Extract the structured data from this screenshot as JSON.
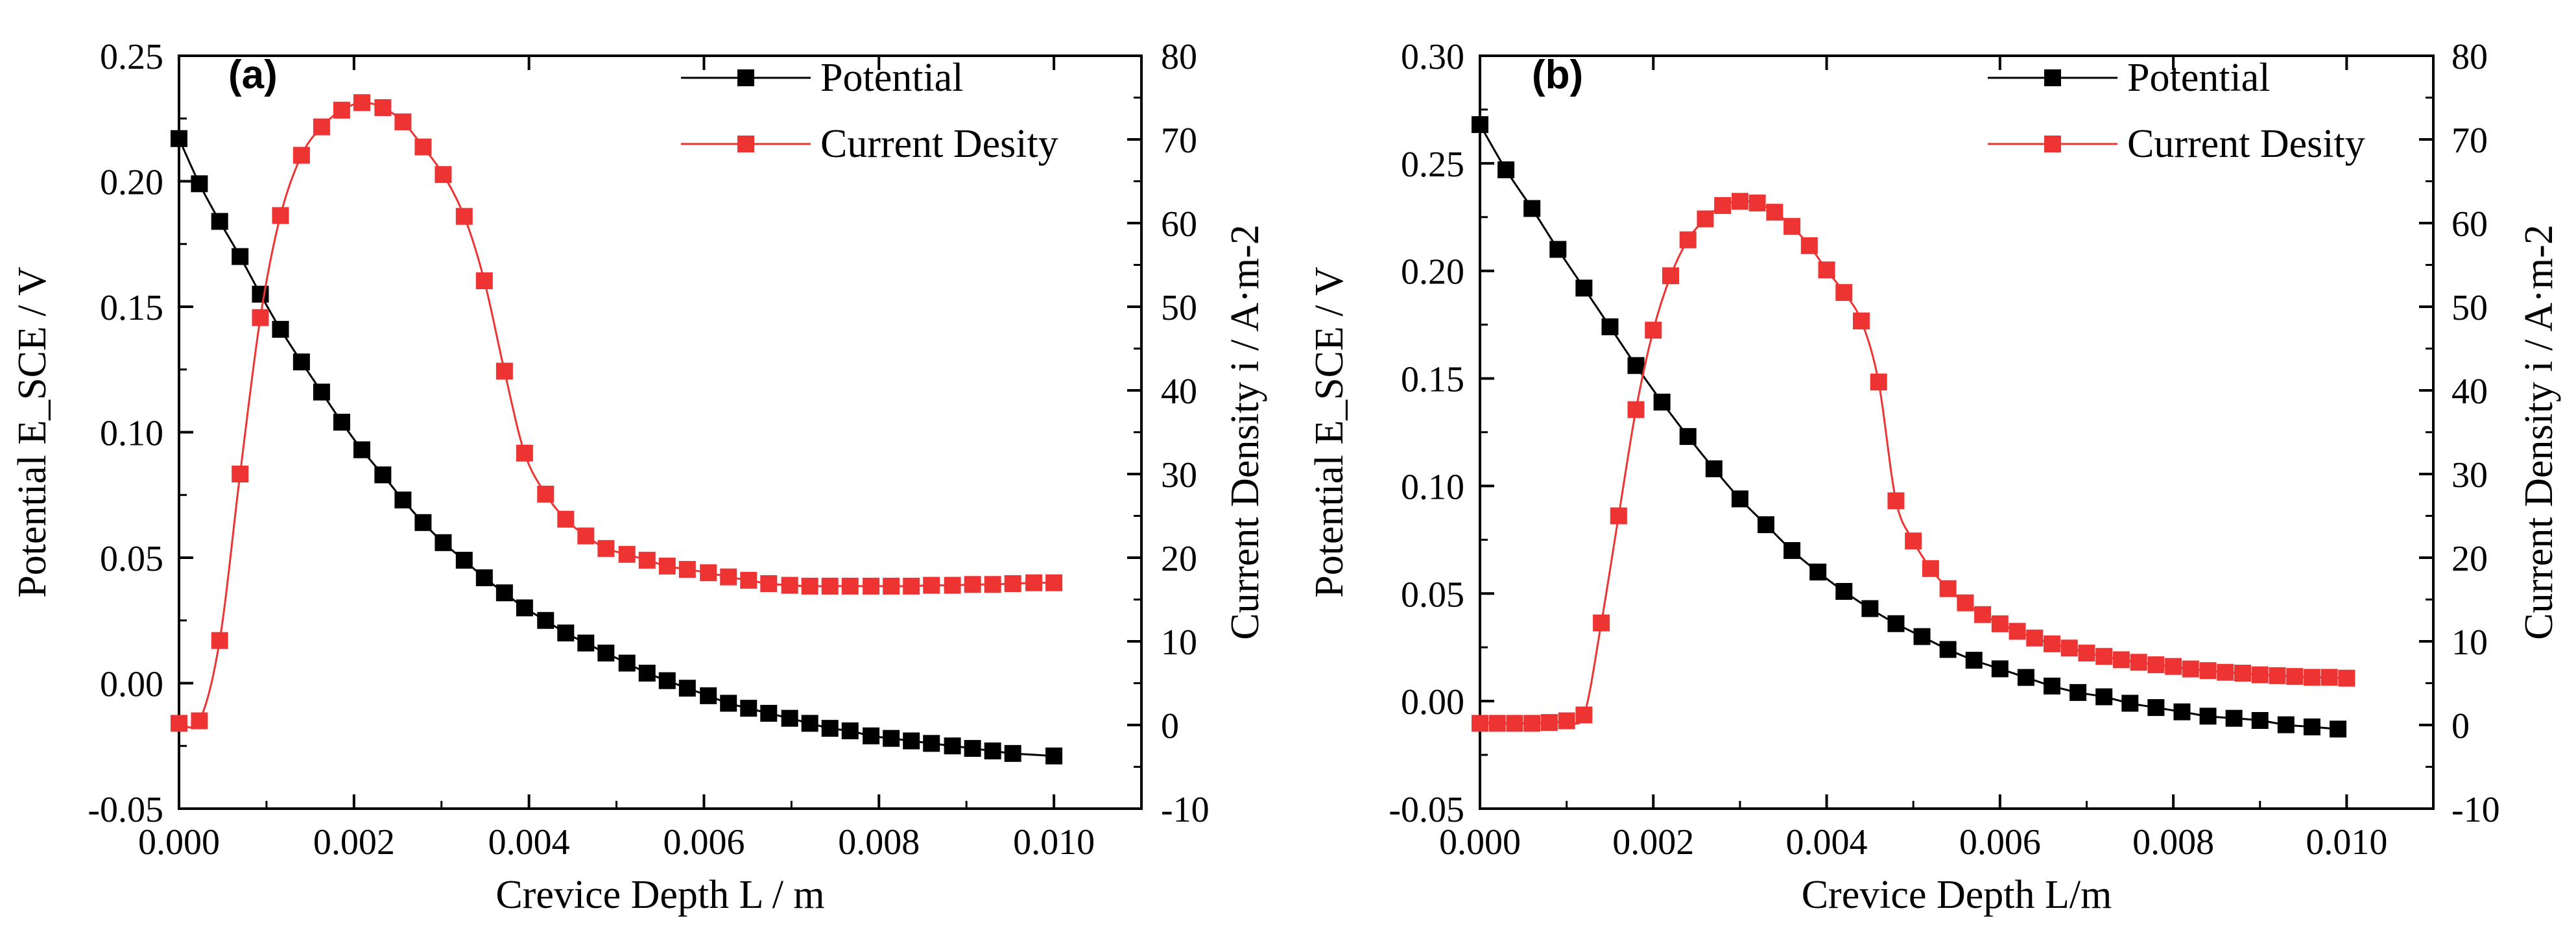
{
  "chart_data": [
    {
      "panel_label": "(a)",
      "type": "line",
      "markers": "square",
      "xlabel": "Crevice Depth L / m",
      "ylabel_left": "Potential E_SCE / V",
      "ylabel_right": "Current Density i / A·m-2",
      "xlim": [
        0,
        0.011
      ],
      "ylim_left": [
        -0.05,
        0.25
      ],
      "ylim_right": [
        -10,
        80
      ],
      "x_ticks": [
        "0.000",
        "0.002",
        "0.004",
        "0.006",
        "0.008",
        "0.010"
      ],
      "y_left_ticks": [
        "-0.05",
        "0.00",
        "0.05",
        "0.10",
        "0.15",
        "0.20",
        "0.25"
      ],
      "y_right_ticks": [
        "-10",
        "0",
        "10",
        "20",
        "30",
        "40",
        "50",
        "60",
        "70",
        "80"
      ],
      "legend_position": "top-right",
      "series": [
        {
          "name": "Potential",
          "axis": "left",
          "color": "#000000",
          "x": [
            0.0,
            0.000233,
            0.000465,
            0.000698,
            0.00093,
            0.00116,
            0.0014,
            0.00163,
            0.00186,
            0.00209,
            0.00233,
            0.00256,
            0.00279,
            0.00302,
            0.00326,
            0.00349,
            0.00372,
            0.00395,
            0.00419,
            0.00442,
            0.00465,
            0.00488,
            0.00512,
            0.00535,
            0.00558,
            0.00581,
            0.00605,
            0.00628,
            0.00651,
            0.00674,
            0.00698,
            0.00721,
            0.00744,
            0.00767,
            0.00791,
            0.00814,
            0.00837,
            0.0086,
            0.00884,
            0.00907,
            0.0093,
            0.00953,
            0.01
          ],
          "y": [
            0.217,
            0.199,
            0.184,
            0.17,
            0.155,
            0.141,
            0.128,
            0.116,
            0.104,
            0.093,
            0.083,
            0.073,
            0.064,
            0.056,
            0.049,
            0.042,
            0.036,
            0.03,
            0.025,
            0.02,
            0.016,
            0.012,
            0.008,
            0.004,
            0.001,
            -0.002,
            -0.005,
            -0.008,
            -0.01,
            -0.012,
            -0.014,
            -0.016,
            -0.018,
            -0.019,
            -0.021,
            -0.022,
            -0.023,
            -0.024,
            -0.025,
            -0.026,
            -0.027,
            -0.028,
            -0.029
          ]
        },
        {
          "name": "Current Desity",
          "axis": "right",
          "color": "#ee3333",
          "x": [
            0.0,
            0.000233,
            0.000465,
            0.000698,
            0.00093,
            0.00116,
            0.0014,
            0.00163,
            0.00186,
            0.00209,
            0.00233,
            0.00256,
            0.00279,
            0.00302,
            0.00326,
            0.00349,
            0.00372,
            0.00395,
            0.00419,
            0.00442,
            0.00465,
            0.00488,
            0.00512,
            0.00535,
            0.00558,
            0.00581,
            0.00605,
            0.00628,
            0.00651,
            0.00674,
            0.00698,
            0.00721,
            0.00744,
            0.00767,
            0.00791,
            0.00814,
            0.00837,
            0.0086,
            0.00884,
            0.00907,
            0.0093,
            0.00953,
            0.00977,
            0.01
          ],
          "y": [
            0.2,
            0.5,
            10.1,
            30.0,
            48.7,
            60.9,
            68.1,
            71.5,
            73.5,
            74.4,
            73.8,
            72.1,
            69.1,
            65.8,
            60.8,
            53.1,
            42.3,
            32.5,
            27.6,
            24.6,
            22.6,
            21.1,
            20.4,
            19.7,
            19.0,
            18.6,
            18.2,
            17.7,
            17.3,
            16.9,
            16.7,
            16.6,
            16.6,
            16.6,
            16.6,
            16.6,
            16.6,
            16.7,
            16.7,
            16.8,
            16.8,
            16.9,
            17.0,
            17.0
          ]
        }
      ]
    },
    {
      "panel_label": "(b)",
      "type": "line",
      "markers": "square",
      "xlabel": "Crevice Depth L/m",
      "ylabel_left": "Potential E_SCE / V",
      "ylabel_right": "Current Density i / A·m-2",
      "xlim": [
        0,
        0.011
      ],
      "ylim_left": [
        -0.05,
        0.3
      ],
      "ylim_right": [
        -10,
        80
      ],
      "x_ticks": [
        "0.000",
        "0.002",
        "0.004",
        "0.006",
        "0.008",
        "0.010"
      ],
      "y_left_ticks": [
        "-0.05",
        "0.00",
        "0.05",
        "0.10",
        "0.15",
        "0.20",
        "0.25",
        "0.30"
      ],
      "y_right_ticks": [
        "-10",
        "0",
        "10",
        "20",
        "30",
        "40",
        "50",
        "60",
        "70",
        "80"
      ],
      "legend_position": "top-right",
      "series": [
        {
          "name": "Potential",
          "axis": "left",
          "color": "#000000",
          "x": [
            0.0,
            0.0003,
            0.0006,
            0.0009,
            0.0012,
            0.0015,
            0.0018,
            0.0021,
            0.0024,
            0.0027,
            0.003,
            0.0033,
            0.0036,
            0.0039,
            0.0042,
            0.0045,
            0.0048,
            0.0051,
            0.0054,
            0.0057,
            0.006,
            0.0063,
            0.0066,
            0.0069,
            0.0072,
            0.0075,
            0.0078,
            0.0081,
            0.0084,
            0.0087,
            0.009,
            0.0093,
            0.0096,
            0.0099
          ],
          "y": [
            0.268,
            0.247,
            0.229,
            0.21,
            0.192,
            0.174,
            0.156,
            0.139,
            0.123,
            0.108,
            0.094,
            0.082,
            0.07,
            0.06,
            0.051,
            0.043,
            0.036,
            0.03,
            0.024,
            0.019,
            0.015,
            0.011,
            0.007,
            0.004,
            0.002,
            -0.001,
            -0.003,
            -0.005,
            -0.007,
            -0.008,
            -0.009,
            -0.011,
            -0.012,
            -0.013
          ]
        },
        {
          "name": "Current Desity",
          "axis": "right",
          "color": "#ee3333",
          "x": [
            0.0,
            0.0002,
            0.0004,
            0.0006,
            0.0008,
            0.001,
            0.0012,
            0.0014,
            0.0016,
            0.0018,
            0.002,
            0.0022,
            0.0024,
            0.0026,
            0.0028,
            0.003,
            0.0032,
            0.0034,
            0.0036,
            0.0038,
            0.004,
            0.0042,
            0.0044,
            0.0046,
            0.0048,
            0.005,
            0.0052,
            0.0054,
            0.0056,
            0.0058,
            0.006,
            0.0062,
            0.0064,
            0.0066,
            0.0068,
            0.007,
            0.0072,
            0.0074,
            0.0076,
            0.0078,
            0.008,
            0.0082,
            0.0084,
            0.0086,
            0.0088,
            0.009,
            0.0092,
            0.0094,
            0.0096,
            0.0098,
            0.01
          ],
          "y": [
            0.2,
            0.2,
            0.2,
            0.2,
            0.3,
            0.5,
            1.2,
            12.2,
            25.0,
            37.7,
            47.2,
            53.7,
            58.0,
            60.5,
            62.1,
            62.6,
            62.4,
            61.3,
            59.6,
            57.3,
            54.4,
            51.7,
            48.3,
            41.0,
            26.8,
            22.0,
            18.7,
            16.3,
            14.6,
            13.2,
            12.1,
            11.2,
            10.4,
            9.7,
            9.2,
            8.6,
            8.2,
            7.8,
            7.5,
            7.2,
            7.0,
            6.7,
            6.5,
            6.3,
            6.2,
            6.0,
            5.9,
            5.8,
            5.7,
            5.7,
            5.6
          ]
        }
      ]
    }
  ]
}
